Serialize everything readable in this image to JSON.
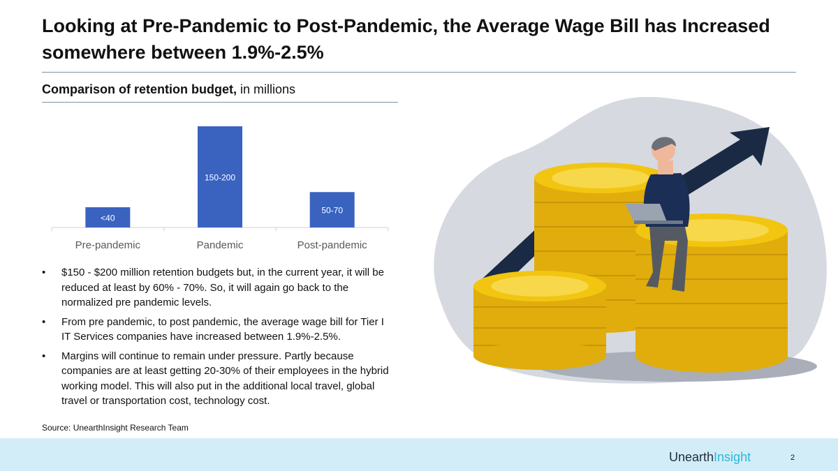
{
  "title": "Looking at Pre-Pandemic to Post-Pandemic, the Average Wage Bill has Increased somewhere between 1.9%-2.5%",
  "subtitle_bold": "Comparison of retention budget,",
  "subtitle_rest": " in millions",
  "chart_data": {
    "type": "bar",
    "categories": [
      "Pre-pandemic",
      "Pandemic",
      "Post-pandemic"
    ],
    "values": [
      40,
      200,
      70
    ],
    "data_labels": [
      "<40",
      "150-200",
      "50-70"
    ],
    "ylim": [
      0,
      200
    ],
    "bar_color": "#3a63c0",
    "grid": false
  },
  "bullets": [
    "$150 - $200 million retention budgets but, in the current year, it will be reduced at least by 60% - 70%. So, it will again go back to the normalized pre pandemic levels.",
    "From pre pandemic, to post pandemic, the average wage bill for Tier I IT Services companies have increased between 1.9%-2.5%.",
    "Margins will continue to remain under pressure. Partly because companies are at least getting 20-30% of their employees in the hybrid working model. This will also put in the additional local travel, global travel or transportation cost, technology cost."
  ],
  "source": "Source: UnearthInsight Research Team",
  "brand_part1": "Unearth",
  "brand_part2": "Insight",
  "page_number": "2",
  "colors": {
    "footer": "#d3edf8",
    "brand_accent": "#2bb6d6",
    "coin": "#f2c511",
    "arrow": "#1a2a44",
    "blob": "#d6d9e0"
  }
}
